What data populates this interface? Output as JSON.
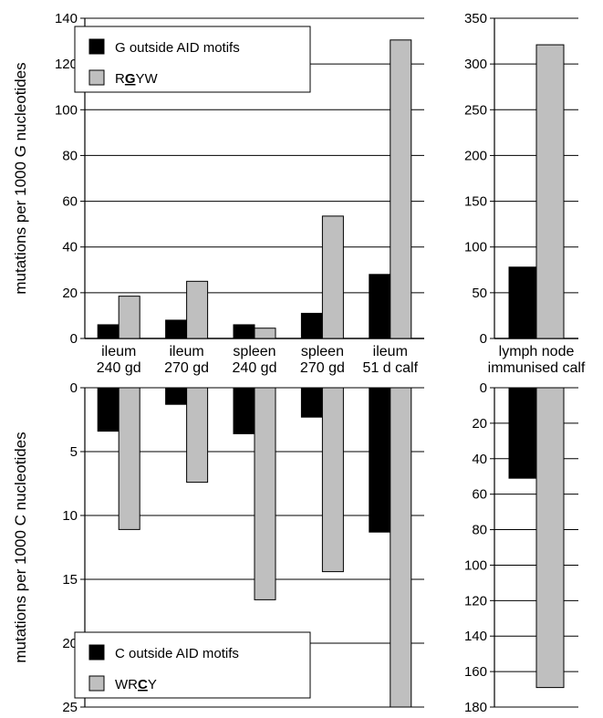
{
  "chart_data": [
    {
      "panel": "top-left",
      "type": "bar",
      "categories": [
        "ileum 240 gd",
        "ileum 270 gd",
        "spleen 240 gd",
        "spleen 270 gd",
        "ileum 51 d calf"
      ],
      "category_lines": [
        [
          "ileum",
          "240 gd"
        ],
        [
          "ileum",
          "270 gd"
        ],
        [
          "spleen",
          "240 gd"
        ],
        [
          "spleen",
          "270 gd"
        ],
        [
          "ileum",
          "51 d calf"
        ]
      ],
      "ylabel": "mutations per 1000 G nucleotides",
      "ylim": [
        0,
        140
      ],
      "yticks": [
        0,
        20,
        40,
        60,
        80,
        100,
        120,
        140
      ],
      "grid": true,
      "legend_position": "top-left",
      "series": [
        {
          "name": "G outside AID motifs",
          "color": "#000000",
          "values": [
            6,
            8,
            6,
            11,
            28
          ]
        },
        {
          "name": "RGYW",
          "color": "#bfbfbf",
          "values": [
            18.5,
            25,
            4.5,
            53.5,
            130.5
          ]
        }
      ]
    },
    {
      "panel": "top-right",
      "type": "bar",
      "categories": [
        "lymph node immunised calf"
      ],
      "category_lines": [
        [
          "lymph node",
          "immunised calf"
        ]
      ],
      "ylim": [
        0,
        350
      ],
      "yticks": [
        0,
        50,
        100,
        150,
        200,
        250,
        300,
        350
      ],
      "grid": true,
      "series": [
        {
          "name": "G outside AID motifs",
          "color": "#000000",
          "values": [
            78
          ]
        },
        {
          "name": "RGYW",
          "color": "#bfbfbf",
          "values": [
            321
          ]
        }
      ]
    },
    {
      "panel": "bottom-left",
      "type": "bar",
      "orientation": "downward",
      "categories": [
        "ileum 240 gd",
        "ileum 270 gd",
        "spleen 240 gd",
        "spleen 270 gd",
        "ileum 51 d calf"
      ],
      "ylabel": "mutations per 1000 C nucleotides",
      "ylim": [
        0,
        25
      ],
      "yticks": [
        0,
        5,
        10,
        15,
        20,
        25
      ],
      "grid": true,
      "legend_position": "bottom-left",
      "series": [
        {
          "name": "C outside AID motifs",
          "color": "#000000",
          "values": [
            3.4,
            1.3,
            3.6,
            2.3,
            11.3
          ]
        },
        {
          "name": "WRCY",
          "color": "#bfbfbf",
          "values": [
            11.1,
            7.4,
            16.6,
            14.4,
            25
          ]
        }
      ]
    },
    {
      "panel": "bottom-right",
      "type": "bar",
      "orientation": "downward",
      "categories": [
        "lymph node immunised calf"
      ],
      "ylim": [
        0,
        180
      ],
      "yticks": [
        0,
        20,
        40,
        60,
        80,
        100,
        120,
        140,
        160,
        180
      ],
      "grid": true,
      "series": [
        {
          "name": "C outside AID motifs",
          "color": "#000000",
          "values": [
            51
          ]
        },
        {
          "name": "WRCY",
          "color": "#bfbfbf",
          "values": [
            169
          ]
        }
      ]
    }
  ],
  "legends": {
    "top": [
      {
        "text": "G outside AID motifs",
        "color": "#000000"
      },
      {
        "pre": "R",
        "emph": "G",
        "post": "YW",
        "color": "#bfbfbf"
      }
    ],
    "bottom": [
      {
        "text": "C outside AID motifs",
        "color": "#000000"
      },
      {
        "pre": "WR",
        "emph": "C",
        "post": "Y",
        "color": "#bfbfbf"
      }
    ]
  }
}
